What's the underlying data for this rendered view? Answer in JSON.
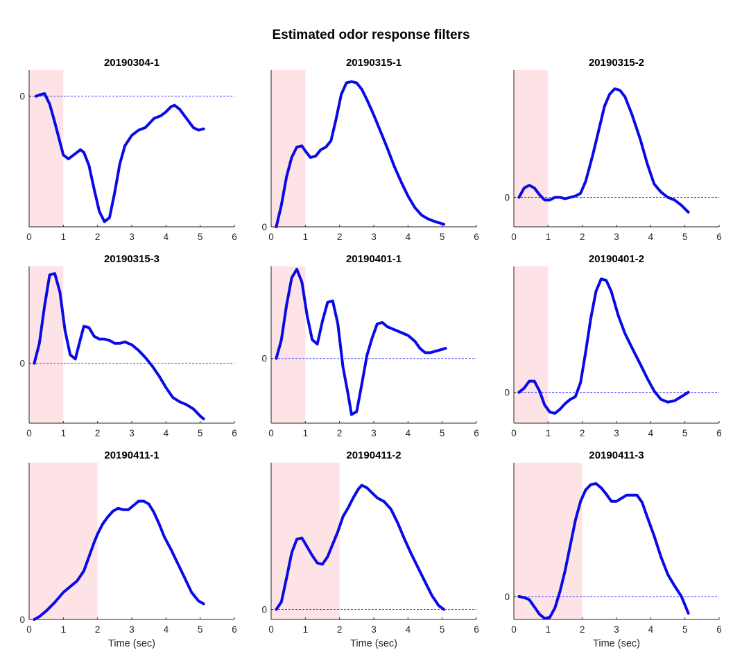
{
  "figure": {
    "title": "Estimated odor response filters"
  },
  "colors": {
    "line": "#0a0ae6",
    "zero_line": "#3b3bff",
    "stimulus_shade": "#fde3e6",
    "axis": "#262626"
  },
  "chart_data": [
    {
      "type": "line",
      "title": "20190304-1",
      "xlabel": "",
      "xlim": [
        0,
        6
      ],
      "xticks": [
        "0",
        "1",
        "2",
        "3",
        "4",
        "5",
        "6"
      ],
      "ylim": [
        -1.0,
        0.2
      ],
      "yticks": [
        {
          "value": 0,
          "label": "0"
        }
      ],
      "stimulus_window": [
        0,
        1
      ],
      "zero_line": true,
      "series": [
        {
          "x": [
            0.2,
            0.3,
            0.45,
            0.6,
            0.75,
            0.9,
            1.0,
            1.15,
            1.3,
            1.5,
            1.6,
            1.75,
            1.9,
            2.05,
            2.2,
            2.35,
            2.5,
            2.65,
            2.8,
            3.0,
            3.2,
            3.4,
            3.65,
            3.85,
            4.0,
            4.15,
            4.25,
            4.4,
            4.6,
            4.8,
            4.95,
            5.1
          ],
          "y": [
            0.0,
            0.01,
            0.02,
            -0.06,
            -0.2,
            -0.35,
            -0.45,
            -0.48,
            -0.45,
            -0.41,
            -0.43,
            -0.53,
            -0.71,
            -0.88,
            -0.96,
            -0.93,
            -0.74,
            -0.52,
            -0.38,
            -0.3,
            -0.26,
            -0.24,
            -0.17,
            -0.15,
            -0.12,
            -0.08,
            -0.07,
            -0.1,
            -0.17,
            -0.24,
            -0.26,
            -0.25
          ]
        }
      ]
    },
    {
      "type": "line",
      "title": "20190315-1",
      "xlabel": "",
      "xlim": [
        0,
        6
      ],
      "xticks": [
        "0",
        "1",
        "2",
        "3",
        "4",
        "5",
        "6"
      ],
      "ylim": [
        0,
        1.22
      ],
      "yticks": [
        {
          "value": 0,
          "label": "0"
        }
      ],
      "stimulus_window": [
        0,
        1
      ],
      "zero_line": false,
      "series": [
        {
          "x": [
            0.15,
            0.3,
            0.45,
            0.6,
            0.75,
            0.9,
            1.0,
            1.15,
            1.3,
            1.45,
            1.6,
            1.75,
            1.9,
            2.05,
            2.2,
            2.35,
            2.5,
            2.65,
            2.8,
            3.0,
            3.2,
            3.4,
            3.6,
            3.8,
            4.0,
            4.2,
            4.4,
            4.6,
            4.8,
            5.05
          ],
          "y": [
            0.0,
            0.17,
            0.39,
            0.54,
            0.62,
            0.63,
            0.59,
            0.54,
            0.55,
            0.6,
            0.62,
            0.67,
            0.84,
            1.03,
            1.12,
            1.13,
            1.12,
            1.07,
            0.99,
            0.87,
            0.74,
            0.61,
            0.47,
            0.35,
            0.24,
            0.15,
            0.09,
            0.06,
            0.04,
            0.02
          ]
        }
      ]
    },
    {
      "type": "line",
      "title": "20190315-2",
      "xlabel": "",
      "xlim": [
        0,
        6
      ],
      "xticks": [
        "0",
        "1",
        "2",
        "3",
        "4",
        "5",
        "6"
      ],
      "ylim": [
        -0.22,
        0.95
      ],
      "yticks": [
        {
          "value": 0,
          "label": "0"
        }
      ],
      "stimulus_window": [
        0,
        1
      ],
      "zero_line": true,
      "series": [
        {
          "x": [
            0.15,
            0.3,
            0.45,
            0.6,
            0.75,
            0.9,
            1.05,
            1.2,
            1.35,
            1.5,
            1.65,
            1.8,
            1.95,
            2.1,
            2.3,
            2.5,
            2.65,
            2.8,
            2.95,
            3.1,
            3.25,
            3.45,
            3.7,
            3.9,
            4.1,
            4.3,
            4.5,
            4.7,
            4.9,
            5.1
          ],
          "y": [
            0.0,
            0.07,
            0.09,
            0.07,
            0.02,
            -0.02,
            -0.02,
            0.0,
            0.0,
            -0.01,
            0.0,
            0.01,
            0.03,
            0.12,
            0.31,
            0.52,
            0.68,
            0.77,
            0.81,
            0.8,
            0.75,
            0.62,
            0.43,
            0.25,
            0.1,
            0.04,
            0.0,
            -0.02,
            -0.06,
            -0.11
          ]
        }
      ]
    },
    {
      "type": "line",
      "title": "20190315-3",
      "xlabel": "",
      "xlim": [
        0,
        6
      ],
      "xticks": [
        "0",
        "1",
        "2",
        "3",
        "4",
        "5",
        "6"
      ],
      "ylim": [
        -0.42,
        0.68
      ],
      "yticks": [
        {
          "value": 0,
          "label": "0"
        }
      ],
      "stimulus_window": [
        0,
        1
      ],
      "zero_line": true,
      "series": [
        {
          "x": [
            0.15,
            0.3,
            0.45,
            0.6,
            0.75,
            0.9,
            1.05,
            1.2,
            1.35,
            1.5,
            1.6,
            1.75,
            1.9,
            2.05,
            2.2,
            2.35,
            2.5,
            2.65,
            2.8,
            3.0,
            3.2,
            3.4,
            3.6,
            3.8,
            4.0,
            4.2,
            4.4,
            4.6,
            4.8,
            5.0,
            5.1
          ],
          "y": [
            0.0,
            0.14,
            0.4,
            0.62,
            0.63,
            0.5,
            0.23,
            0.06,
            0.03,
            0.17,
            0.26,
            0.25,
            0.19,
            0.17,
            0.17,
            0.16,
            0.14,
            0.14,
            0.15,
            0.13,
            0.09,
            0.04,
            -0.02,
            -0.09,
            -0.17,
            -0.24,
            -0.27,
            -0.29,
            -0.32,
            -0.37,
            -0.39
          ]
        }
      ]
    },
    {
      "type": "line",
      "title": "20190401-1",
      "xlabel": "",
      "xlim": [
        0,
        6
      ],
      "xticks": [
        "0",
        "1",
        "2",
        "3",
        "4",
        "5",
        "6"
      ],
      "ylim": [
        -0.45,
        0.64
      ],
      "yticks": [
        {
          "value": 0,
          "label": "0"
        }
      ],
      "stimulus_window": [
        0,
        1
      ],
      "zero_line": true,
      "series": [
        {
          "x": [
            0.15,
            0.3,
            0.45,
            0.6,
            0.75,
            0.9,
            1.05,
            1.2,
            1.35,
            1.5,
            1.65,
            1.8,
            1.95,
            2.1,
            2.25,
            2.35,
            2.5,
            2.65,
            2.8,
            2.95,
            3.1,
            3.25,
            3.4,
            3.6,
            3.8,
            4.0,
            4.2,
            4.35,
            4.5,
            4.65,
            4.8,
            4.95,
            5.1
          ],
          "y": [
            0.0,
            0.13,
            0.37,
            0.56,
            0.62,
            0.53,
            0.3,
            0.13,
            0.1,
            0.26,
            0.39,
            0.4,
            0.24,
            -0.06,
            -0.25,
            -0.39,
            -0.37,
            -0.18,
            0.02,
            0.14,
            0.24,
            0.25,
            0.22,
            0.2,
            0.18,
            0.16,
            0.12,
            0.07,
            0.04,
            0.04,
            0.05,
            0.06,
            0.07
          ]
        }
      ]
    },
    {
      "type": "line",
      "title": "20190401-2",
      "xlabel": "",
      "xlim": [
        0,
        6
      ],
      "xticks": [
        "0",
        "1",
        "2",
        "3",
        "4",
        "5",
        "6"
      ],
      "ylim": [
        -0.22,
        0.9
      ],
      "yticks": [
        {
          "value": 0,
          "label": "0"
        }
      ],
      "stimulus_window": [
        0,
        1
      ],
      "zero_line": true,
      "series": [
        {
          "x": [
            0.15,
            0.3,
            0.45,
            0.6,
            0.75,
            0.9,
            1.05,
            1.2,
            1.35,
            1.5,
            1.65,
            1.8,
            1.95,
            2.1,
            2.25,
            2.4,
            2.55,
            2.7,
            2.85,
            3.05,
            3.25,
            3.45,
            3.7,
            3.9,
            4.1,
            4.3,
            4.5,
            4.7,
            4.9,
            5.1
          ],
          "y": [
            0.0,
            0.03,
            0.08,
            0.08,
            0.01,
            -0.09,
            -0.14,
            -0.15,
            -0.12,
            -0.08,
            -0.05,
            -0.03,
            0.07,
            0.29,
            0.53,
            0.72,
            0.81,
            0.8,
            0.72,
            0.55,
            0.42,
            0.32,
            0.2,
            0.1,
            0.01,
            -0.05,
            -0.07,
            -0.06,
            -0.03,
            0.0
          ]
        }
      ]
    },
    {
      "type": "line",
      "title": "20190411-1",
      "xlabel": "Time (sec)",
      "xlim": [
        0,
        6
      ],
      "xticks": [
        "0",
        "1",
        "2",
        "3",
        "4",
        "5",
        "6"
      ],
      "ylim": [
        0,
        1.1
      ],
      "yticks": [
        {
          "value": 0,
          "label": "0"
        }
      ],
      "stimulus_window": [
        0,
        2
      ],
      "zero_line": false,
      "series": [
        {
          "x": [
            0.15,
            0.3,
            0.5,
            0.75,
            1.0,
            1.2,
            1.4,
            1.6,
            1.75,
            1.9,
            2.0,
            2.15,
            2.3,
            2.45,
            2.6,
            2.75,
            2.9,
            3.05,
            3.2,
            3.35,
            3.5,
            3.65,
            3.8,
            3.95,
            4.15,
            4.35,
            4.55,
            4.75,
            4.95,
            5.1
          ],
          "y": [
            0.0,
            0.02,
            0.06,
            0.12,
            0.19,
            0.23,
            0.27,
            0.34,
            0.44,
            0.54,
            0.6,
            0.67,
            0.72,
            0.76,
            0.78,
            0.77,
            0.77,
            0.8,
            0.83,
            0.83,
            0.81,
            0.75,
            0.67,
            0.58,
            0.49,
            0.39,
            0.29,
            0.19,
            0.13,
            0.11
          ]
        }
      ]
    },
    {
      "type": "line",
      "title": "20190411-2",
      "xlabel": "Time (sec)",
      "xlim": [
        0,
        6
      ],
      "xticks": [
        "0",
        "1",
        "2",
        "3",
        "4",
        "5",
        "6"
      ],
      "ylim": [
        -0.08,
        1.17
      ],
      "yticks": [
        {
          "value": 0,
          "label": "0"
        }
      ],
      "stimulus_window": [
        0,
        2
      ],
      "zero_line": true,
      "series": [
        {
          "x": [
            0.15,
            0.3,
            0.45,
            0.6,
            0.75,
            0.9,
            1.05,
            1.2,
            1.35,
            1.5,
            1.65,
            1.8,
            1.95,
            2.1,
            2.25,
            2.4,
            2.55,
            2.65,
            2.8,
            2.95,
            3.1,
            3.3,
            3.5,
            3.7,
            3.9,
            4.1,
            4.3,
            4.5,
            4.7,
            4.9,
            5.05
          ],
          "y": [
            0.0,
            0.06,
            0.25,
            0.45,
            0.56,
            0.57,
            0.5,
            0.43,
            0.37,
            0.36,
            0.42,
            0.52,
            0.62,
            0.74,
            0.81,
            0.89,
            0.96,
            0.99,
            0.97,
            0.93,
            0.89,
            0.86,
            0.8,
            0.69,
            0.56,
            0.44,
            0.33,
            0.22,
            0.11,
            0.03,
            0.0
          ]
        }
      ]
    },
    {
      "type": "line",
      "title": "20190411-3",
      "xlabel": "Time (sec)",
      "xlim": [
        0,
        6
      ],
      "xticks": [
        "0",
        "1",
        "2",
        "3",
        "4",
        "5",
        "6"
      ],
      "ylim": [
        -0.22,
        1.28
      ],
      "yticks": [
        {
          "value": 0,
          "label": "0"
        }
      ],
      "stimulus_window": [
        0,
        2
      ],
      "zero_line": true,
      "series": [
        {
          "x": [
            0.15,
            0.3,
            0.45,
            0.6,
            0.75,
            0.9,
            1.05,
            1.2,
            1.35,
            1.5,
            1.65,
            1.8,
            1.95,
            2.1,
            2.25,
            2.4,
            2.55,
            2.7,
            2.85,
            3.0,
            3.15,
            3.3,
            3.45,
            3.6,
            3.75,
            3.9,
            4.1,
            4.3,
            4.5,
            4.7,
            4.9,
            5.1
          ],
          "y": [
            0.0,
            -0.01,
            -0.03,
            -0.1,
            -0.17,
            -0.21,
            -0.2,
            -0.11,
            0.05,
            0.25,
            0.49,
            0.73,
            0.91,
            1.02,
            1.07,
            1.08,
            1.04,
            0.98,
            0.91,
            0.91,
            0.94,
            0.97,
            0.97,
            0.97,
            0.9,
            0.76,
            0.58,
            0.38,
            0.21,
            0.1,
            0.0,
            -0.16
          ]
        }
      ]
    }
  ]
}
